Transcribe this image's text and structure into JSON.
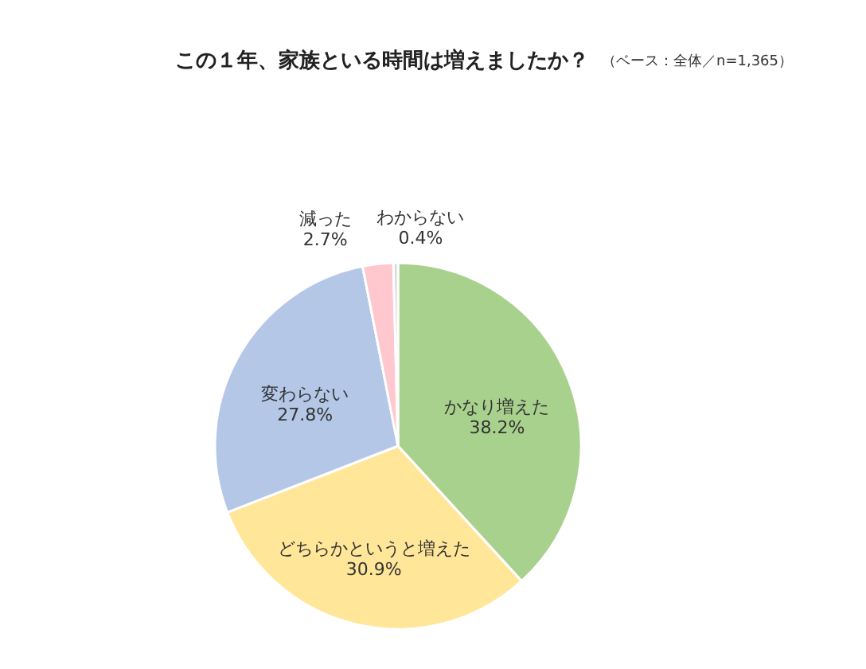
{
  "chart_data": {
    "type": "pie",
    "title": "この１年、家族といる時間は増えましたか？",
    "subtitle": "（ベース：全体／n=1,365）",
    "categories": [
      "かなり増えた",
      "どちらかというと増えた",
      "変わらない",
      "減った",
      "わからない"
    ],
    "values": [
      38.2,
      30.9,
      27.8,
      2.7,
      0.4
    ],
    "value_labels": [
      "38.2%",
      "30.9%",
      "27.8%",
      "2.7%",
      "0.4%"
    ],
    "colors": [
      "#a9d18e",
      "#ffe699",
      "#b4c7e7",
      "#ffc7ce",
      "#d9d9d9"
    ]
  }
}
